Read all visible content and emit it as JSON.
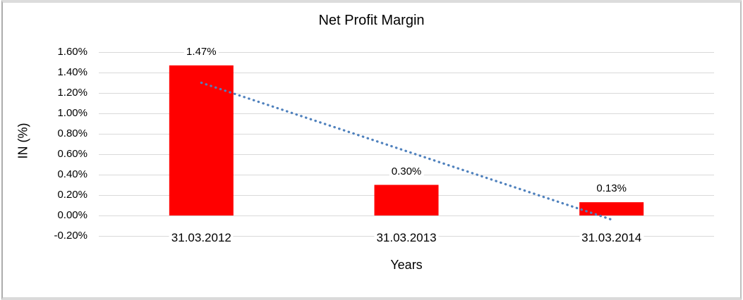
{
  "chart_data": {
    "type": "bar",
    "title": "Net Profit Margin",
    "xlabel": "Years",
    "ylabel": "IN (%)",
    "categories": [
      "31.03.2012",
      "31.03.2013",
      "31.03.2014"
    ],
    "values": [
      1.47,
      0.3,
      0.13
    ],
    "data_labels": [
      "1.47%",
      "0.30%",
      "0.13%"
    ],
    "bar_color": "#FF0000",
    "ylim": [
      -0.2,
      1.6
    ],
    "ytick_step": 0.2,
    "yticks": [
      1.6,
      1.4,
      1.2,
      1.0,
      0.8,
      0.6,
      0.4,
      0.2,
      0.0,
      -0.2
    ],
    "ytick_labels": [
      "1.60%",
      "1.40%",
      "1.20%",
      "1.00%",
      "0.80%",
      "0.60%",
      "0.40%",
      "0.20%",
      "0.00%",
      "-0.20%"
    ],
    "grid": true,
    "gridline_color": "#D9D9D9",
    "legend": "none",
    "trendline": {
      "type": "linear",
      "style": "dotted",
      "color": "#4F81BD",
      "start_value": 1.3,
      "end_value": -0.04
    }
  }
}
